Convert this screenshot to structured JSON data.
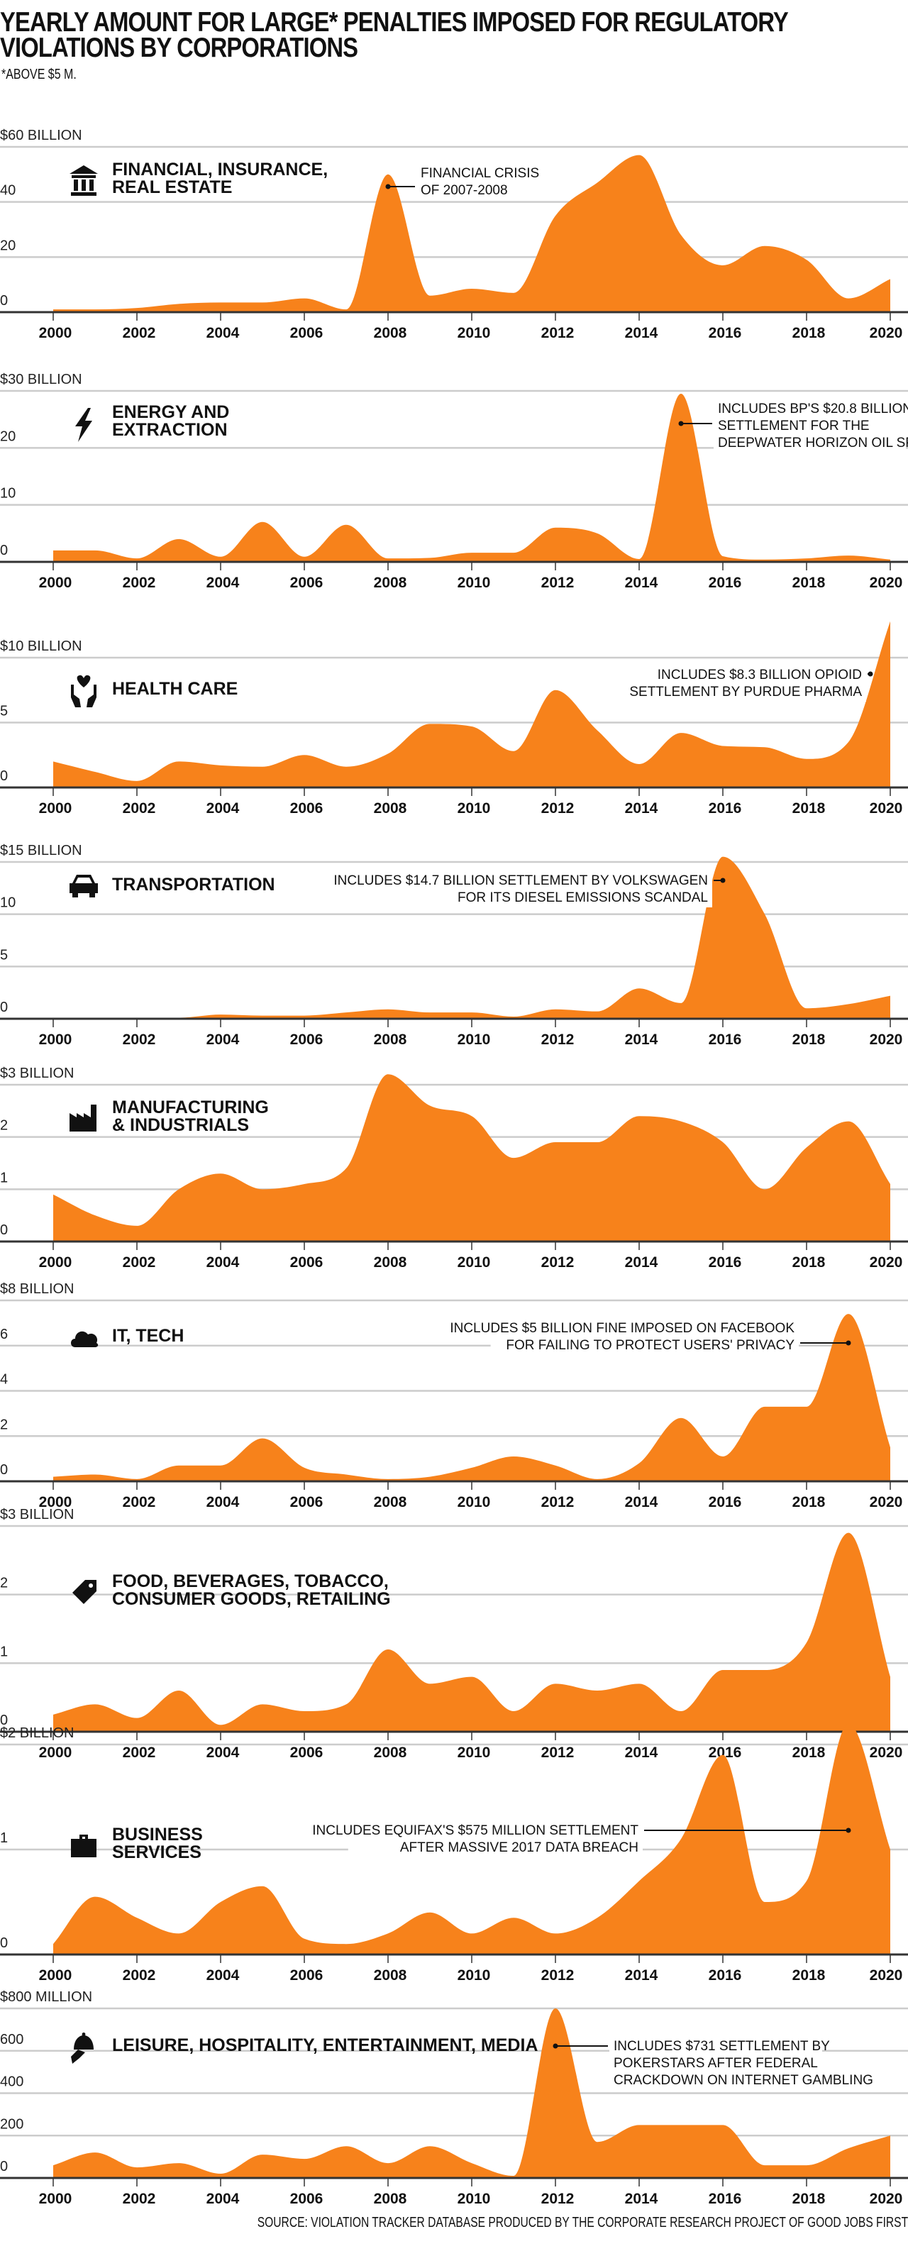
{
  "title_line1": "YEARLY AMOUNT FOR LARGE* PENALTIES IMPOSED FOR REGULATORY",
  "title_line2": "VIOLATIONS BY CORPORATIONS",
  "subtitle": "*ABOVE $5 M.",
  "source": "SOURCE: VIOLATION TRACKER DATABASE PRODUCED BY THE CORPORATE RESEARCH PROJECT OF GOOD JOBS FIRST",
  "colors": {
    "area": "#F7821B",
    "grid": "#CCCCCC",
    "baseline": "#333333",
    "text": "#111111"
  },
  "chart_data": [
    {
      "type": "area",
      "category": [
        "FINANCIAL, INSURANCE,",
        "REAL ESTATE"
      ],
      "icon": "bank-icon",
      "ylim": [
        0,
        60
      ],
      "y_ticks": [
        {
          "value": 0,
          "label": "0"
        },
        {
          "value": 20,
          "label": "20"
        },
        {
          "value": 40,
          "label": "40"
        },
        {
          "value": 60,
          "label": "$60 BILLION"
        }
      ],
      "x": [
        2000,
        2001,
        2002,
        2003,
        2004,
        2005,
        2006,
        2007,
        2008,
        2009,
        2010,
        2011,
        2012,
        2013,
        2014,
        2015,
        2016,
        2017,
        2018,
        2019,
        2020
      ],
      "values": [
        1,
        1,
        1.5,
        3,
        3.5,
        3.5,
        5,
        1,
        50,
        6,
        8.5,
        7,
        35,
        47,
        57,
        28,
        17,
        24,
        19,
        5,
        12
      ],
      "annotation": {
        "year": 2008,
        "lines": [
          "FINANCIAL CRISIS",
          "OF 2007-2008"
        ]
      }
    },
    {
      "type": "area",
      "category": [
        "ENERGY AND",
        "EXTRACTION"
      ],
      "icon": "lightning-bolt-icon",
      "ylim": [
        0,
        30
      ],
      "y_ticks": [
        {
          "value": 0,
          "label": "0"
        },
        {
          "value": 10,
          "label": "10"
        },
        {
          "value": 20,
          "label": "20"
        },
        {
          "value": 30,
          "label": "$30 BILLION"
        }
      ],
      "x": [
        2000,
        2001,
        2002,
        2003,
        2004,
        2005,
        2006,
        2007,
        2008,
        2009,
        2010,
        2011,
        2012,
        2013,
        2014,
        2015,
        2016,
        2017,
        2018,
        2019,
        2020
      ],
      "values": [
        2,
        2,
        0.6,
        4,
        0.9,
        7,
        0.9,
        6.5,
        0.6,
        0.7,
        1.6,
        1.6,
        6,
        5,
        0.5,
        29.5,
        1,
        0.4,
        0.6,
        1.1,
        0.4
      ],
      "annotation": {
        "year": 2015,
        "lines": [
          "INCLUDES BP'S $20.8 BILLION",
          "SETTLEMENT FOR THE",
          "DEEPWATER HORIZON OIL SPILL"
        ]
      }
    },
    {
      "type": "area",
      "category": [
        "HEALTH CARE"
      ],
      "icon": "hands-heart-icon",
      "ylim": [
        0,
        10
      ],
      "y_ticks": [
        {
          "value": 0,
          "label": "0"
        },
        {
          "value": 5,
          "label": "5"
        },
        {
          "value": 10,
          "label": "$10 BILLION"
        }
      ],
      "x": [
        2000,
        2001,
        2002,
        2003,
        2004,
        2005,
        2006,
        2007,
        2008,
        2009,
        2010,
        2011,
        2012,
        2013,
        2014,
        2015,
        2016,
        2017,
        2018,
        2019,
        2020
      ],
      "values": [
        2,
        1.2,
        0.5,
        2,
        1.7,
        1.6,
        2.5,
        1.6,
        2.6,
        4.9,
        4.7,
        2.8,
        7.5,
        4.4,
        1.8,
        4.2,
        3.2,
        3.1,
        2.2,
        3.5,
        12.8
      ],
      "annotation": {
        "year": 2020,
        "lines": [
          "INCLUDES $8.3 BILLION OPIOID",
          "SETTLEMENT BY PURDUE PHARMA"
        ]
      }
    },
    {
      "type": "area",
      "category": [
        "TRANSPORTATION"
      ],
      "icon": "car-icon",
      "ylim": [
        0,
        15
      ],
      "y_ticks": [
        {
          "value": 0,
          "label": "0"
        },
        {
          "value": 5,
          "label": "5"
        },
        {
          "value": 10,
          "label": "10"
        },
        {
          "value": 15,
          "label": "$15 BILLION"
        }
      ],
      "x": [
        2000,
        2001,
        2002,
        2003,
        2004,
        2005,
        2006,
        2007,
        2008,
        2009,
        2010,
        2011,
        2012,
        2013,
        2014,
        2015,
        2016,
        2017,
        2018,
        2019,
        2020
      ],
      "values": [
        0.1,
        0.1,
        0.1,
        0.1,
        0.4,
        0.3,
        0.3,
        0.6,
        0.9,
        0.6,
        0.6,
        0.2,
        0.9,
        0.7,
        2.9,
        1.5,
        15.5,
        10,
        1,
        1.4,
        2.2
      ],
      "annotation": {
        "year": 2016,
        "lines": [
          "INCLUDES $14.7 BILLION SETTLEMENT BY VOLKSWAGEN",
          "FOR ITS DIESEL EMISSIONS SCANDAL"
        ]
      }
    },
    {
      "type": "area",
      "category": [
        "MANUFACTURING",
        "& INDUSTRIALS"
      ],
      "icon": "factory-icon",
      "ylim": [
        0,
        3
      ],
      "y_ticks": [
        {
          "value": 0,
          "label": "0"
        },
        {
          "value": 1,
          "label": "1"
        },
        {
          "value": 2,
          "label": "2"
        },
        {
          "value": 3,
          "label": "$3 BILLION"
        }
      ],
      "x": [
        2000,
        2001,
        2002,
        2003,
        2004,
        2005,
        2006,
        2007,
        2008,
        2009,
        2010,
        2011,
        2012,
        2013,
        2014,
        2015,
        2016,
        2017,
        2018,
        2019,
        2020
      ],
      "values": [
        0.9,
        0.5,
        0.3,
        1.0,
        1.3,
        1.0,
        1.1,
        1.4,
        3.2,
        2.6,
        2.4,
        1.6,
        1.9,
        1.9,
        2.4,
        2.3,
        1.9,
        1.0,
        1.8,
        2.3,
        1.1
      ]
    },
    {
      "type": "area",
      "category": [
        "IT, TECH"
      ],
      "icon": "cloud-wifi-icon",
      "ylim": [
        0,
        8
      ],
      "y_ticks": [
        {
          "value": 0,
          "label": "0"
        },
        {
          "value": 2,
          "label": "2"
        },
        {
          "value": 4,
          "label": "4"
        },
        {
          "value": 6,
          "label": "6"
        },
        {
          "value": 8,
          "label": "$8 BILLION"
        }
      ],
      "x": [
        2000,
        2001,
        2002,
        2003,
        2004,
        2005,
        2006,
        2007,
        2008,
        2009,
        2010,
        2011,
        2012,
        2013,
        2014,
        2015,
        2016,
        2017,
        2018,
        2019,
        2020
      ],
      "values": [
        0.2,
        0.3,
        0.1,
        0.7,
        0.7,
        1.9,
        0.6,
        0.3,
        0.1,
        0.2,
        0.6,
        1.1,
        0.7,
        0.1,
        0.8,
        2.8,
        1.1,
        3.3,
        3.3,
        7.4,
        1.5
      ],
      "annotation": {
        "year": 2019,
        "lines": [
          "INCLUDES $5 BILLION FINE IMPOSED ON FACEBOOK",
          "FOR FAILING TO PROTECT USERS' PRIVACY"
        ]
      }
    },
    {
      "type": "area",
      "category": [
        "FOOD, BEVERAGES, TOBACCO,",
        "CONSUMER GOODS, RETAILING"
      ],
      "icon": "price-tag-icon",
      "ylim": [
        0,
        3
      ],
      "y_ticks": [
        {
          "value": 0,
          "label": "0"
        },
        {
          "value": 1,
          "label": "1"
        },
        {
          "value": 2,
          "label": "2"
        },
        {
          "value": 3,
          "label": "$3 BILLION"
        }
      ],
      "x": [
        2000,
        2001,
        2002,
        2003,
        2004,
        2005,
        2006,
        2007,
        2008,
        2009,
        2010,
        2011,
        2012,
        2013,
        2014,
        2015,
        2016,
        2017,
        2018,
        2019,
        2020
      ],
      "values": [
        0.25,
        0.4,
        0.2,
        0.6,
        0.1,
        0.4,
        0.3,
        0.4,
        1.2,
        0.7,
        0.8,
        0.3,
        0.7,
        0.6,
        0.7,
        0.3,
        0.9,
        0.9,
        1.3,
        2.9,
        0.8
      ]
    },
    {
      "type": "area",
      "category": [
        "BUSINESS",
        "SERVICES"
      ],
      "icon": "briefcase-icon",
      "ylim": [
        0,
        2
      ],
      "y_ticks": [
        {
          "value": 0,
          "label": "0"
        },
        {
          "value": 1,
          "label": "1"
        },
        {
          "value": 2,
          "label": "$2 BILLION"
        }
      ],
      "x": [
        2000,
        2001,
        2002,
        2003,
        2004,
        2005,
        2006,
        2007,
        2008,
        2009,
        2010,
        2011,
        2012,
        2013,
        2014,
        2015,
        2016,
        2017,
        2018,
        2019,
        2020
      ],
      "values": [
        0.1,
        0.55,
        0.35,
        0.2,
        0.5,
        0.65,
        0.15,
        0.1,
        0.2,
        0.4,
        0.2,
        0.35,
        0.2,
        0.35,
        0.7,
        1.1,
        1.9,
        0.5,
        0.7,
        2.2,
        1.0
      ],
      "annotation": {
        "year": 2019,
        "lines": [
          "INCLUDES EQUIFAX'S $575 MILLION SETTLEMENT",
          "AFTER MASSIVE 2017 DATA BREACH"
        ]
      }
    },
    {
      "type": "area",
      "category": [
        "LEISURE, HOSPITALITY, ENTERTAINMENT, MEDIA"
      ],
      "icon": "serving-hand-icon",
      "ylim": [
        0,
        800
      ],
      "y_ticks": [
        {
          "value": 0,
          "label": "0"
        },
        {
          "value": 200,
          "label": "200"
        },
        {
          "value": 400,
          "label": "400"
        },
        {
          "value": 600,
          "label": "600"
        },
        {
          "value": 800,
          "label": "$800 MILLION"
        }
      ],
      "x": [
        2000,
        2001,
        2002,
        2003,
        2004,
        2005,
        2006,
        2007,
        2008,
        2009,
        2010,
        2011,
        2012,
        2013,
        2014,
        2015,
        2016,
        2017,
        2018,
        2019,
        2020
      ],
      "values": [
        60,
        120,
        50,
        70,
        20,
        110,
        90,
        150,
        70,
        150,
        70,
        10,
        800,
        170,
        250,
        250,
        250,
        60,
        60,
        140,
        200
      ],
      "annotation": {
        "year": 2012,
        "lines": [
          "INCLUDES $731 SETTLEMENT BY",
          "POKERSTARS AFTER FEDERAL",
          "CRACKDOWN ON INTERNET GAMBLING"
        ]
      }
    }
  ]
}
